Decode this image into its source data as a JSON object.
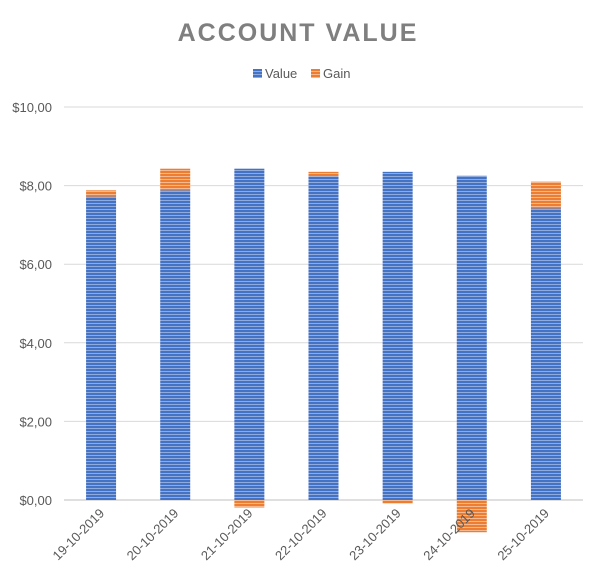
{
  "chart_data": {
    "type": "bar",
    "stacked": true,
    "title": "ACCOUNT VALUE",
    "xlabel": "",
    "ylabel": "",
    "categories": [
      "19-10-2019",
      "20-10-2019",
      "21-10-2019",
      "22-10-2019",
      "23-10-2019",
      "24-10-2019",
      "25-10-2019"
    ],
    "series": [
      {
        "name": "Value",
        "color": "#4472C4",
        "values": [
          7.72,
          7.88,
          8.43,
          8.24,
          8.35,
          8.25,
          7.42
        ]
      },
      {
        "name": "Gain",
        "color": "#ED7D31",
        "values": [
          0.16,
          0.55,
          -0.19,
          0.11,
          -0.09,
          -0.82,
          0.68
        ]
      }
    ],
    "ylim": [
      0,
      10
    ],
    "ytick_values": [
      0,
      2,
      4,
      6,
      8,
      10
    ],
    "ytick_labels": [
      "$0,00",
      "$2,00",
      "$4,00",
      "$6,00",
      "$8,00",
      "$10,00"
    ],
    "grid": true,
    "legend_position": "top"
  }
}
